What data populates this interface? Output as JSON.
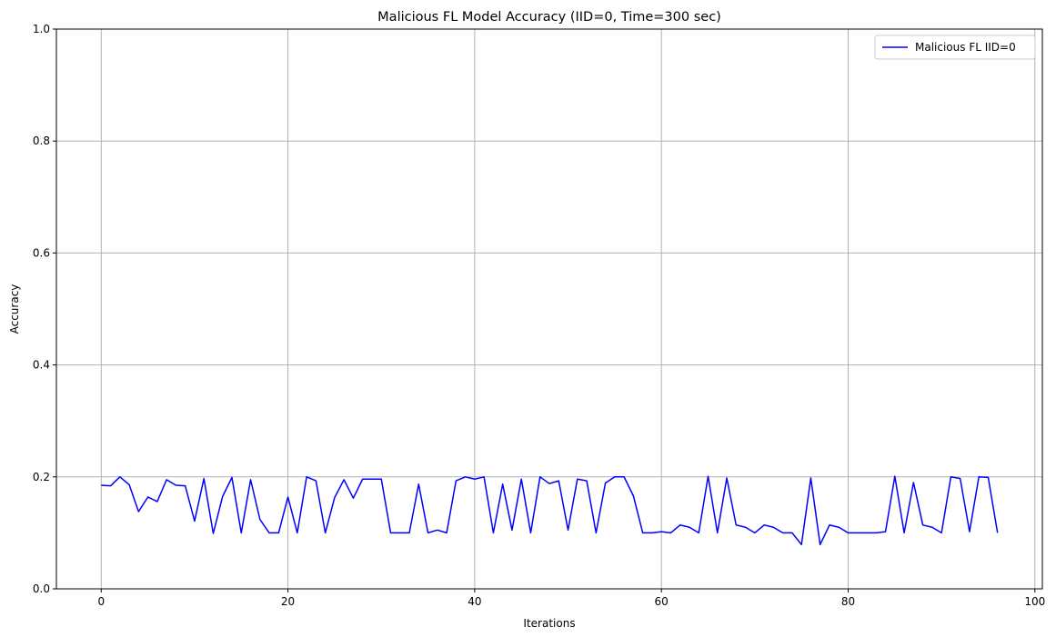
{
  "chart_data": {
    "type": "line",
    "title": "Malicious FL Model Accuracy (IID=0, Time=300 sec)",
    "xlabel": "Iterations",
    "ylabel": "Accuracy",
    "xlim": [
      -4.8,
      100.8
    ],
    "ylim": [
      0,
      1
    ],
    "xticks": [
      0,
      20,
      40,
      60,
      80,
      100
    ],
    "yticks": [
      0.0,
      0.2,
      0.4,
      0.6,
      0.8,
      1.0
    ],
    "xtick_labels": [
      "0",
      "20",
      "40",
      "60",
      "80",
      "100"
    ],
    "ytick_labels": [
      "0.0",
      "0.2",
      "0.4",
      "0.6",
      "0.8",
      "1.0"
    ],
    "grid": true,
    "legend_position": "top-right",
    "series": [
      {
        "name": "Malicious FL IID=0",
        "color": "#0000ff",
        "x": [
          0,
          1,
          2,
          3,
          4,
          5,
          6,
          7,
          8,
          9,
          10,
          11,
          12,
          13,
          14,
          15,
          16,
          17,
          18,
          19,
          20,
          21,
          22,
          23,
          24,
          25,
          26,
          27,
          28,
          29,
          30,
          31,
          32,
          33,
          34,
          35,
          36,
          37,
          38,
          39,
          40,
          41,
          42,
          43,
          44,
          45,
          46,
          47,
          48,
          49,
          50,
          51,
          52,
          53,
          54,
          55,
          56,
          57,
          58,
          59,
          60,
          61,
          62,
          63,
          64,
          65,
          66,
          67,
          68,
          69,
          70,
          71,
          72,
          73,
          74,
          75,
          76,
          77,
          78,
          79,
          80,
          81,
          82,
          83,
          84,
          85,
          86,
          87,
          88,
          89,
          90,
          91,
          92,
          93,
          94,
          95,
          96
        ],
        "values": [
          0.185,
          0.184,
          0.2,
          0.186,
          0.138,
          0.164,
          0.156,
          0.195,
          0.185,
          0.184,
          0.121,
          0.197,
          0.099,
          0.165,
          0.199,
          0.1,
          0.195,
          0.124,
          0.1,
          0.1,
          0.164,
          0.1,
          0.2,
          0.193,
          0.1,
          0.163,
          0.195,
          0.162,
          0.196,
          0.196,
          0.196,
          0.1,
          0.1,
          0.1,
          0.187,
          0.1,
          0.105,
          0.1,
          0.193,
          0.2,
          0.196,
          0.2,
          0.1,
          0.187,
          0.105,
          0.196,
          0.1,
          0.2,
          0.188,
          0.193,
          0.105,
          0.196,
          0.193,
          0.1,
          0.189,
          0.2,
          0.2,
          0.166,
          0.1,
          0.1,
          0.102,
          0.1,
          0.114,
          0.11,
          0.1,
          0.201,
          0.1,
          0.198,
          0.114,
          0.11,
          0.1,
          0.114,
          0.11,
          0.1,
          0.1,
          0.079,
          0.198,
          0.079,
          0.114,
          0.11,
          0.1,
          0.1,
          0.1,
          0.1,
          0.102,
          0.201,
          0.1,
          0.19,
          0.114,
          0.11,
          0.1,
          0.2,
          0.197,
          0.102,
          0.2,
          0.199,
          0.1
        ]
      }
    ]
  }
}
